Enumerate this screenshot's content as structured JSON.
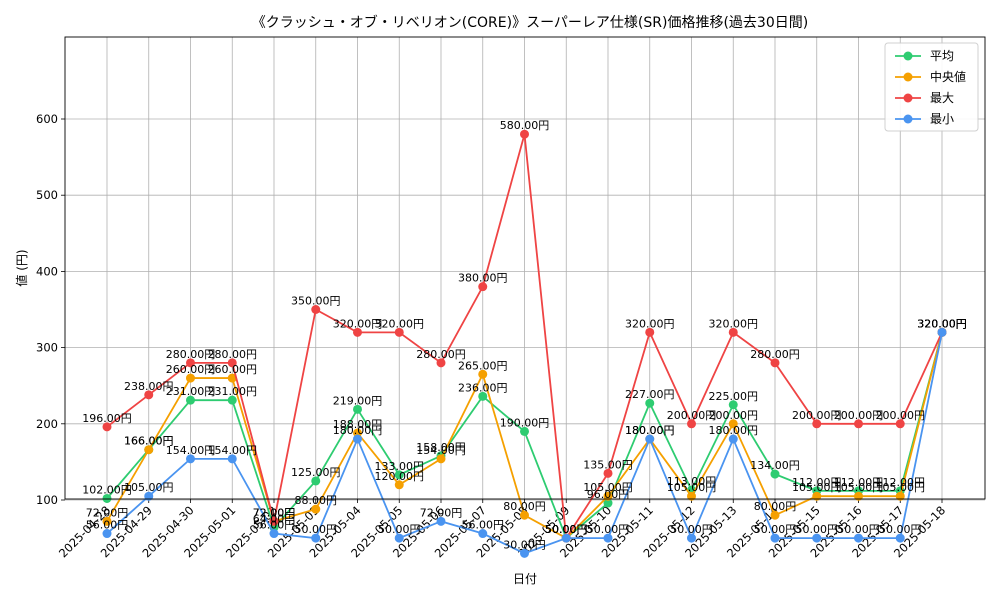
{
  "chart_data": {
    "type": "line",
    "title": "《クラッシュ・オブ・リベリオン(CORE)》スーパーレア仕様(SR)価格推移(過去30日間)",
    "xlabel": "日付",
    "ylabel": "値 (円)",
    "ylim": [
      0,
      610
    ],
    "yticks": [
      100,
      200,
      300,
      400,
      500,
      600
    ],
    "grid": true,
    "legend_position": "top-right",
    "label_suffix": "円",
    "categories": [
      "2025-04-28",
      "2025-04-29",
      "2025-04-30",
      "2025-05-01",
      "2025-05-02",
      "2025-05-03",
      "2025-05-04",
      "2025-05-05",
      "2025-05-06",
      "2025-05-07",
      "2025-05-08",
      "2025-05-09",
      "2025-05-10",
      "2025-05-11",
      "2025-05-12",
      "2025-05-13",
      "2025-05-14",
      "2025-05-15",
      "2025-05-16",
      "2025-05-17",
      "2025-05-18"
    ],
    "series": [
      {
        "name": "平均",
        "color": "#2ecc71",
        "values": [
          102,
          166,
          231,
          231,
          64,
          125,
          219,
          133,
          158,
          236,
          190,
          50,
          96,
          227,
          113,
          225,
          134,
          112,
          112,
          112,
          320
        ]
      },
      {
        "name": "中央値",
        "color": "#f5a000",
        "values": [
          72,
          166,
          260,
          260,
          72,
          88,
          188,
          120,
          154,
          265,
          80,
          50,
          105,
          180,
          105,
          200,
          80,
          105,
          105,
          105,
          320
        ]
      },
      {
        "name": "最大",
        "color": "#ef4444",
        "values": [
          196,
          238,
          280,
          280,
          72,
          350,
          320,
          320,
          280,
          380,
          580,
          50,
          135,
          320,
          200,
          320,
          280,
          200,
          200,
          200,
          320
        ]
      },
      {
        "name": "最小",
        "color": "#4a94f0",
        "values": [
          56,
          105,
          154,
          154,
          56,
          50,
          180,
          50,
          72,
          56,
          30,
          50,
          50,
          180,
          50,
          180,
          50,
          50,
          50,
          50,
          320
        ]
      }
    ]
  }
}
